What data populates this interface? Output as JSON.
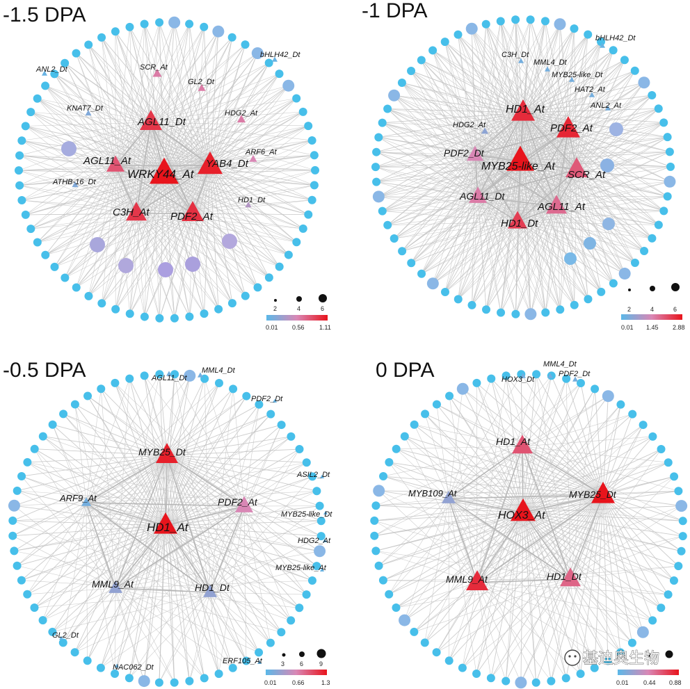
{
  "panels": [
    {
      "title": "-1.5 DPA",
      "hubs": [
        {
          "label": "WRKY44_At",
          "level": 1.0
        },
        {
          "label": "YAB4_Dt",
          "level": 0.95
        },
        {
          "label": "AGL11_Dt",
          "level": 0.85
        },
        {
          "label": "C3H_At",
          "level": 0.85
        },
        {
          "label": "PDF2_At",
          "level": 0.88
        },
        {
          "label": "AGL11_At",
          "level": 0.72
        }
      ],
      "peripheral_labels": [
        {
          "label": "SCR_At",
          "shape": "triangle",
          "level": 0.55
        },
        {
          "label": "GL2_Dt",
          "shape": "triangle",
          "level": 0.55
        },
        {
          "label": "HDG2_At",
          "shape": "triangle",
          "level": 0.55
        },
        {
          "label": "ARF6_At",
          "shape": "triangle",
          "level": 0.5
        },
        {
          "label": "HD1_Dt",
          "shape": "triangle",
          "level": 0.35
        },
        {
          "label": "KNAT7_Dt",
          "shape": "triangle",
          "level": 0.15
        },
        {
          "label": "ATHB-16_Dt",
          "shape": "triangle",
          "level": 0.15
        },
        {
          "label": "ANL2_Dt",
          "shape": "triangle",
          "level": 0.05
        },
        {
          "label": "bHLH42_Dt",
          "shape": "triangle",
          "level": 0.05
        }
      ],
      "legend": {
        "sizes": [
          "2",
          "4",
          "6"
        ],
        "scale": [
          "0.01",
          "0.56",
          "1.11"
        ]
      }
    },
    {
      "title": "-1 DPA",
      "hubs": [
        {
          "label": "MYB25-like_At",
          "level": 1.0
        },
        {
          "label": "HD1_At",
          "level": 0.9
        },
        {
          "label": "PDF2_At",
          "level": 0.92
        },
        {
          "label": "SCR_At",
          "level": 0.7
        },
        {
          "label": "AGL11_At",
          "level": 0.62
        },
        {
          "label": "HD1_Dt",
          "level": 0.82
        },
        {
          "label": "AGL11_Dt",
          "level": 0.55
        },
        {
          "label": "PDF2_Dt",
          "level": 0.5
        }
      ],
      "peripheral_labels": [
        {
          "label": "HDG2_At",
          "shape": "triangle",
          "level": 0.2
        },
        {
          "label": "C3H_Dt",
          "shape": "triangle",
          "level": 0.1
        },
        {
          "label": "MML4_Dt",
          "shape": "triangle",
          "level": 0.1
        },
        {
          "label": "MYB25-like_Dt",
          "shape": "triangle",
          "level": 0.1
        },
        {
          "label": "HAT2_At",
          "shape": "triangle",
          "level": 0.1
        },
        {
          "label": "ANL2_At",
          "shape": "triangle",
          "level": 0.1
        },
        {
          "label": "bHLH42_Dt",
          "shape": "triangle",
          "level": 0.05
        }
      ],
      "legend": {
        "sizes": [
          "2",
          "4",
          "6"
        ],
        "scale": [
          "0.01",
          "1.45",
          "2.88"
        ]
      }
    },
    {
      "title": "-0.5 DPA",
      "hubs": [
        {
          "label": "HD1_At",
          "level": 1.0
        },
        {
          "label": "MYB25_Dt",
          "level": 0.95
        },
        {
          "label": "PDF2_At",
          "level": 0.5
        },
        {
          "label": "MML9_At",
          "level": 0.22
        },
        {
          "label": "HD1_Dt",
          "level": 0.22
        },
        {
          "label": "ARF9_At",
          "level": 0.1
        }
      ],
      "peripheral_labels": [
        {
          "label": "AGL11_Dt",
          "shape": "triangle",
          "level": 0.1
        },
        {
          "label": "MML4_Dt",
          "shape": "triangle",
          "level": 0.1
        },
        {
          "label": "PDF2_Dt",
          "shape": "triangle",
          "level": 0.05
        },
        {
          "label": "ASIL2_Dt",
          "shape": "triangle",
          "level": 0.05
        },
        {
          "label": "MYB25-like_Dt",
          "shape": "triangle",
          "level": 0.05
        },
        {
          "label": "HDG2_At",
          "shape": "triangle",
          "level": 0.05
        },
        {
          "label": "MYB25-like_At",
          "shape": "triangle",
          "level": 0.05
        },
        {
          "label": "GL2_Dt",
          "shape": "triangle",
          "level": 0.05
        },
        {
          "label": "NAC062_Dt",
          "shape": "triangle",
          "level": 0.05
        },
        {
          "label": "ERF105_At",
          "shape": "triangle",
          "level": 0.05
        }
      ],
      "legend": {
        "sizes": [
          "3",
          "6",
          "9"
        ],
        "scale": [
          "0.01",
          "0.66",
          "1.3"
        ]
      }
    },
    {
      "title": "0 DPA",
      "hubs": [
        {
          "label": "HOX3_At",
          "level": 1.0
        },
        {
          "label": "MYB25_Dt",
          "level": 1.0
        },
        {
          "label": "MML9_At",
          "level": 0.9
        },
        {
          "label": "HD1_At",
          "level": 0.72
        },
        {
          "label": "HD1_Dt",
          "level": 0.65
        },
        {
          "label": "MYB109_At",
          "level": 0.22
        }
      ],
      "peripheral_labels": [
        {
          "label": "HOX3_Dt",
          "shape": "triangle",
          "level": 0.1
        },
        {
          "label": "MML4_Dt",
          "shape": "triangle",
          "level": 0.1
        },
        {
          "label": "PDF2_Dt",
          "shape": "triangle",
          "level": 0.1
        }
      ],
      "legend": {
        "sizes": [],
        "scale": [
          "0.01",
          "0.44",
          "0.88"
        ]
      }
    }
  ],
  "colors": {
    "low": "#5bb8e8",
    "mid": "#d987b5",
    "high": "#e8141c",
    "edge": "#c3c3c3",
    "ring": "#47bfea"
  },
  "watermark": "基迪奥生物"
}
